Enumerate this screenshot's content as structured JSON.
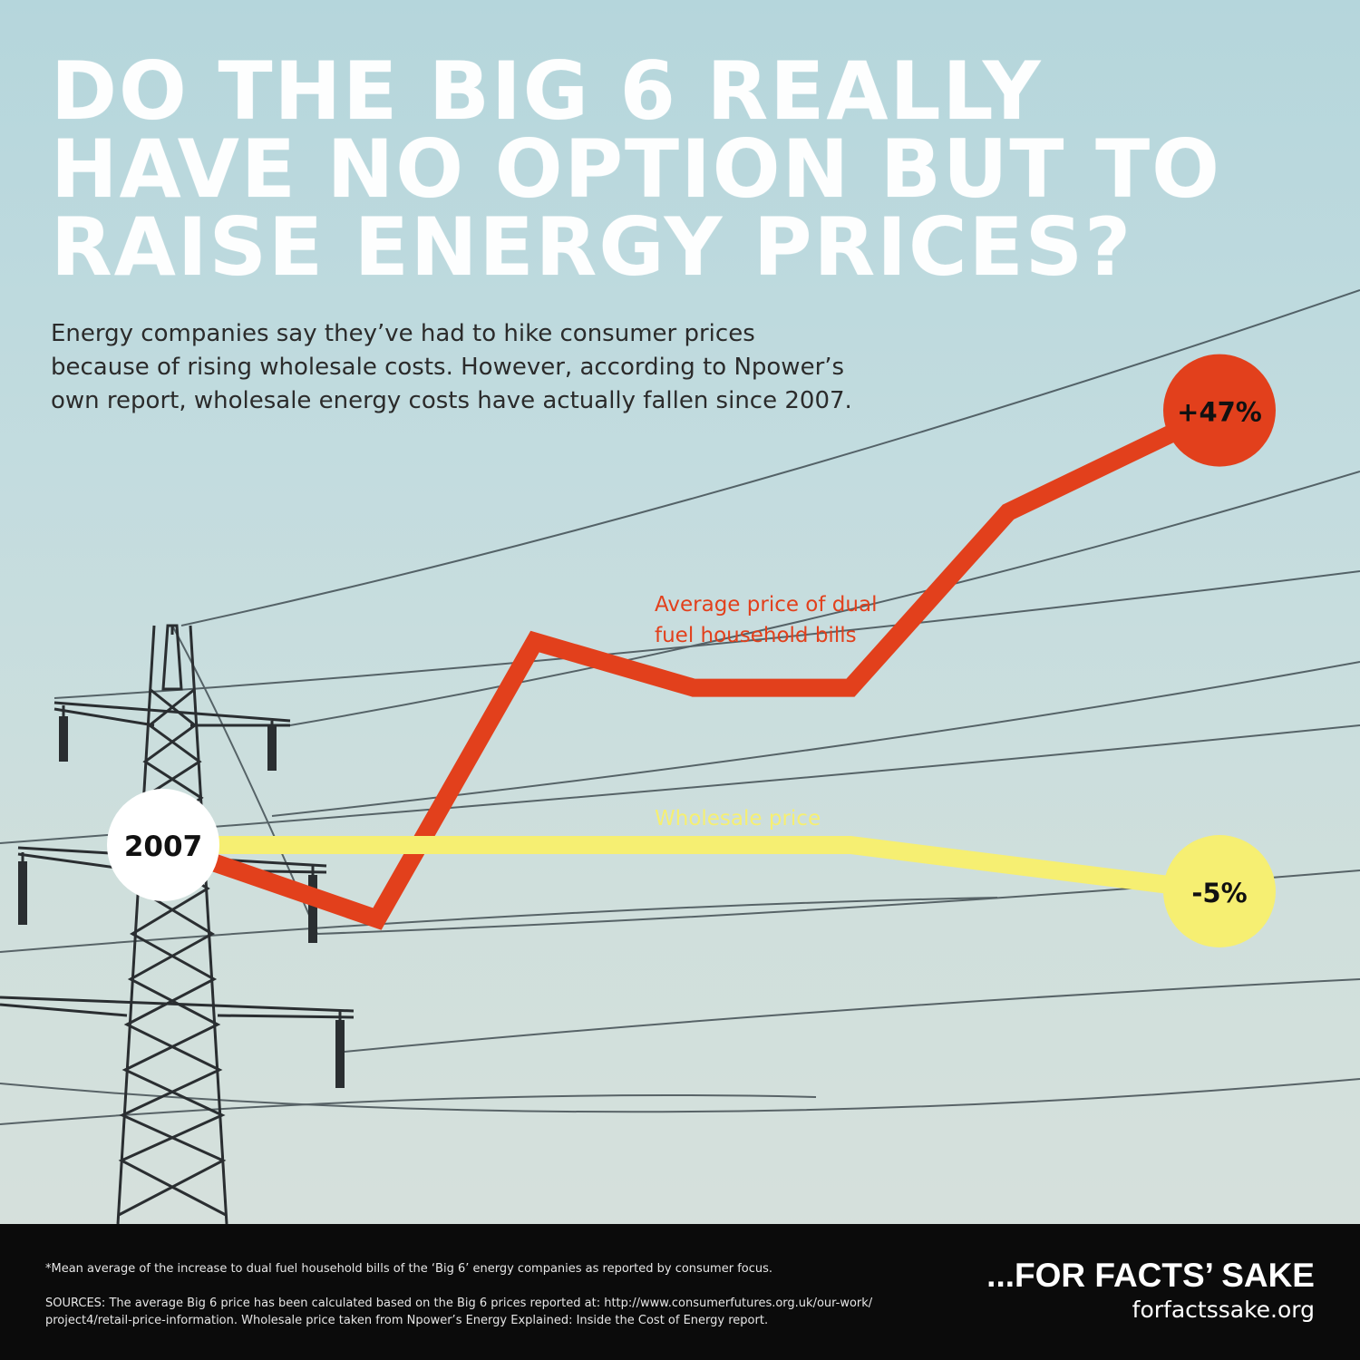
{
  "headline": {
    "lines": [
      "DO THE BIG 6 REALLY",
      "HAVE NO OPTION BUT TO",
      "RAISE ENERGY PRICES?"
    ]
  },
  "intro": {
    "lines": [
      "Energy companies say they’ve had to hike consumer prices",
      "because of rising wholesale costs. However, according to Npower’s",
      "own report, wholesale energy costs have actually fallen since 2007."
    ]
  },
  "chart_data": {
    "type": "line",
    "start_label": "2007",
    "ylabel": "",
    "series": [
      {
        "name": "Average price of dual fuel household bills",
        "color": "#e2401c",
        "values": [
          0,
          -8,
          22,
          17,
          17,
          36,
          47
        ],
        "end_label": "+47%"
      },
      {
        "name": "Wholesale price",
        "color": "#f6ef72",
        "values": [
          0,
          0,
          0,
          0,
          0,
          -5
        ],
        "end_label": "-5%"
      }
    ]
  },
  "footer": {
    "footnote": "*Mean average of the increase to dual fuel household bills of the ‘Big 6’ energy companies as reported by consumer focus.",
    "sources_lines": [
      "SOURCES: The average Big 6 price has been calculated based on the Big 6 prices reported at: http://www.consumerfutures.org.uk/our-work/",
      "project4/retail-price-information. Wholesale price taken from Npower’s Energy Explained: Inside the Cost of Energy report."
    ],
    "brand": "...FOR FACTS’ SAKE",
    "site": "forfactssake.org"
  },
  "colors": {
    "sky_top": "#b5d6dc",
    "sky_bottom": "#d8e1dc",
    "bills_line": "#e2401c",
    "wholesale_line": "#f6ef72",
    "footer_bg": "#0b0b0b"
  }
}
